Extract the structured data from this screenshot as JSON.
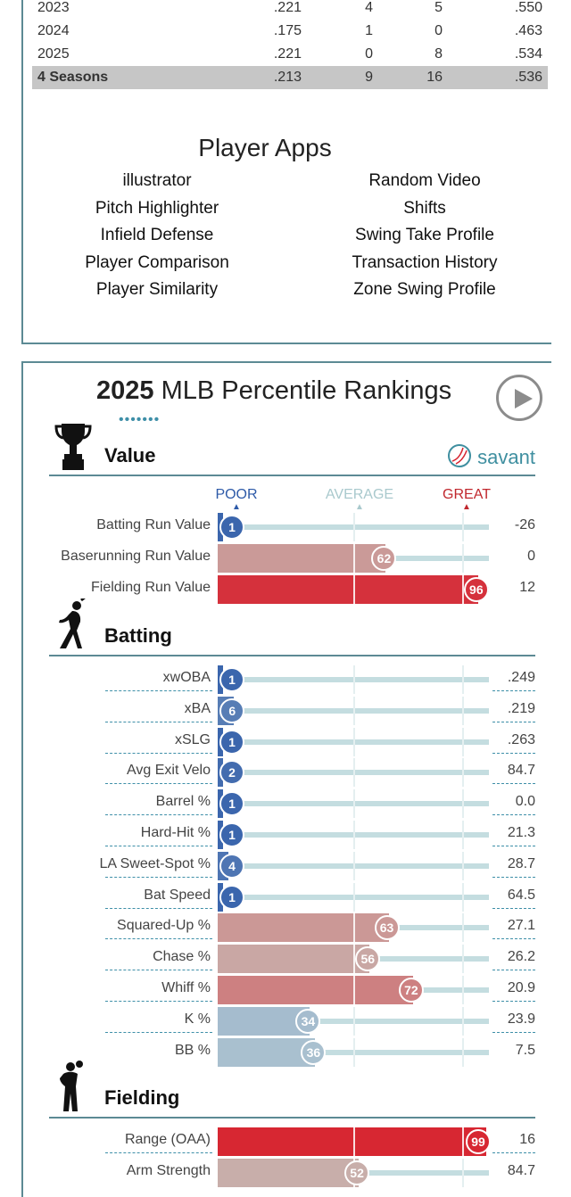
{
  "career_stats": {
    "rows": [
      {
        "year": "2023",
        "avg": ".221",
        "c2": "4",
        "c3": "5",
        "c4": ".550"
      },
      {
        "year": "2024",
        "avg": ".175",
        "c2": "1",
        "c3": "0",
        "c4": ".463"
      },
      {
        "year": "2025",
        "avg": ".221",
        "c2": "0",
        "c3": "8",
        "c4": ".534"
      }
    ],
    "total": {
      "year": "4 Seasons",
      "avg": ".213",
      "c2": "9",
      "c3": "16",
      "c4": ".536"
    }
  },
  "player_apps": {
    "title": "Player Apps",
    "left": [
      "illustrator",
      "Pitch Highlighter",
      "Infield Defense",
      "Player Comparison",
      "Player Similarity"
    ],
    "right": [
      "Random Video",
      "Shifts",
      "Swing Take Profile",
      "Transaction History",
      "Zone Swing Profile"
    ]
  },
  "percentile": {
    "title_year": "2025",
    "title_rest": " MLB Percentile Rankings",
    "dots": "•••••••",
    "savant_label": "savant",
    "scale": {
      "poor": "POOR",
      "average": "AVERAGE",
      "great": "GREAT"
    },
    "colors": {
      "poor": "#2d5aa8",
      "great": "#d7232f",
      "average": "#b5a5a4",
      "teal": "#3e8fa8"
    },
    "sections": [
      {
        "title": "Value",
        "icon": "trophy-icon",
        "metrics": [
          {
            "label": "Batting Run Value",
            "pct": 1,
            "value": "-26"
          },
          {
            "label": "Baserunning Run Value",
            "pct": 62,
            "value": "0"
          },
          {
            "label": "Fielding Run Value",
            "pct": 96,
            "value": "12"
          }
        ]
      },
      {
        "title": "Batting",
        "icon": "batter-icon",
        "metrics": [
          {
            "label": "xwOBA",
            "pct": 1,
            "value": ".249"
          },
          {
            "label": "xBA",
            "pct": 6,
            "value": ".219"
          },
          {
            "label": "xSLG",
            "pct": 1,
            "value": ".263"
          },
          {
            "label": "Avg Exit Velo",
            "pct": 2,
            "value": "84.7"
          },
          {
            "label": "Barrel %",
            "pct": 1,
            "value": "0.0"
          },
          {
            "label": "Hard-Hit %",
            "pct": 1,
            "value": "21.3"
          },
          {
            "label": "LA Sweet-Spot %",
            "pct": 4,
            "value": "28.7"
          },
          {
            "label": "Bat Speed",
            "pct": 1,
            "value": "64.5"
          },
          {
            "label": "Squared-Up %",
            "pct": 63,
            "value": "27.1"
          },
          {
            "label": "Chase %",
            "pct": 56,
            "value": "26.2"
          },
          {
            "label": "Whiff %",
            "pct": 72,
            "value": "20.9"
          },
          {
            "label": "K %",
            "pct": 34,
            "value": "23.9"
          },
          {
            "label": "BB %",
            "pct": 36,
            "value": "7.5"
          }
        ]
      },
      {
        "title": "Fielding",
        "icon": "fielder-icon",
        "metrics": [
          {
            "label": "Range (OAA)",
            "pct": 99,
            "value": "16"
          },
          {
            "label": "Arm Strength",
            "pct": 52,
            "value": "84.7"
          }
        ]
      }
    ]
  }
}
